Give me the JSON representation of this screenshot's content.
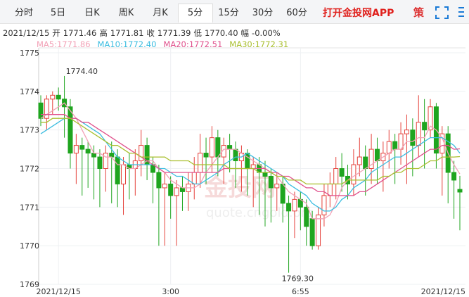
{
  "header": {
    "tabs": [
      {
        "label": "分时"
      },
      {
        "label": "5日"
      },
      {
        "label": "日K"
      },
      {
        "label": "周K"
      },
      {
        "label": "月K"
      },
      {
        "label": "5分",
        "active": true
      },
      {
        "label": "15分"
      },
      {
        "label": "30分"
      },
      {
        "label": "60分"
      }
    ],
    "app_link": "打开金投网APP",
    "strategy": "策",
    "quote": {
      "date": "2021/12/15",
      "items": [
        {
          "label": "开",
          "value": "1771.46"
        },
        {
          "label": "高",
          "value": "1771.81"
        },
        {
          "label": "收",
          "value": "1771.39"
        },
        {
          "label": "低",
          "value": "1770.40"
        },
        {
          "label": "幅",
          "value": "-0.00%"
        }
      ]
    },
    "ma_values": [
      "1771.86",
      "1772.40",
      "1772.51",
      "1772.31"
    ],
    "watermark": [
      "金投网",
      "quote.cngold.org"
    ]
  },
  "chart_data": {
    "type": "candlestick",
    "categories": [
      null,
      null,
      null,
      "2021/12/15",
      null,
      null,
      null,
      null,
      null,
      null,
      null,
      null,
      null,
      null,
      null,
      null,
      null,
      null,
      null,
      null,
      null,
      null,
      "3:00",
      null,
      null,
      null,
      null,
      null,
      null,
      null,
      null,
      null,
      null,
      null,
      null,
      null,
      null,
      null,
      null,
      null,
      null,
      null,
      null,
      null,
      "6:55",
      null,
      null,
      null,
      null,
      null,
      null,
      null,
      null,
      null,
      null,
      null,
      null,
      null,
      null,
      null,
      null,
      null,
      null,
      null,
      null,
      null,
      null,
      null,
      null,
      null,
      null,
      "2021/12/15"
    ],
    "candles": [
      [
        1773.7,
        1773.9,
        1773.1,
        1773.3
      ],
      [
        1773.3,
        1773.9,
        1773.0,
        1773.8
      ],
      [
        1773.8,
        1774.0,
        1773.4,
        1773.9
      ],
      [
        1773.9,
        1774.1,
        1773.5,
        1773.8
      ],
      [
        1773.8,
        1774.4,
        1772.8,
        1773.6
      ],
      [
        1773.6,
        1773.8,
        1772.0,
        1772.4
      ],
      [
        1772.4,
        1772.9,
        1771.6,
        1772.6
      ],
      [
        1772.6,
        1772.8,
        1771.3,
        1772.5
      ],
      [
        1772.5,
        1772.7,
        1771.5,
        1772.4
      ],
      [
        1772.4,
        1772.6,
        1771.2,
        1772.3
      ],
      [
        1772.3,
        1772.5,
        1771.0,
        1772.0
      ],
      [
        1772.0,
        1772.6,
        1771.4,
        1772.4
      ],
      [
        1772.4,
        1772.7,
        1771.1,
        1772.3
      ],
      [
        1772.3,
        1772.5,
        1771.0,
        1771.6
      ],
      [
        1771.6,
        1772.3,
        1770.8,
        1772.1
      ],
      [
        1772.1,
        1772.4,
        1771.2,
        1772.0
      ],
      [
        1772.0,
        1772.5,
        1771.3,
        1772.2
      ],
      [
        1772.2,
        1773.0,
        1771.8,
        1772.6
      ],
      [
        1772.6,
        1772.8,
        1771.7,
        1772.1
      ],
      [
        1772.1,
        1772.3,
        1771.1,
        1771.9
      ],
      [
        1771.9,
        1772.1,
        1770.0,
        1771.5
      ],
      [
        1771.5,
        1771.9,
        1770.0,
        1771.6
      ],
      [
        1771.6,
        1771.8,
        1770.7,
        1771.3
      ],
      [
        1771.3,
        1771.7,
        1770.0,
        1771.5
      ],
      [
        1771.5,
        1771.8,
        1770.9,
        1771.4
      ],
      [
        1771.4,
        1771.9,
        1770.9,
        1771.6
      ],
      [
        1771.6,
        1772.3,
        1771.2,
        1771.9
      ],
      [
        1771.9,
        1772.9,
        1771.5,
        1772.4
      ],
      [
        1772.4,
        1772.8,
        1771.6,
        1772.3
      ],
      [
        1772.3,
        1773.1,
        1771.9,
        1772.8
      ],
      [
        1772.8,
        1773.0,
        1771.8,
        1772.3
      ],
      [
        1772.3,
        1772.8,
        1771.6,
        1772.6
      ],
      [
        1772.6,
        1772.9,
        1771.9,
        1772.5
      ],
      [
        1772.5,
        1772.7,
        1771.5,
        1772.2
      ],
      [
        1772.2,
        1772.6,
        1771.4,
        1772.4
      ],
      [
        1772.4,
        1772.5,
        1771.3,
        1772.0
      ],
      [
        1772.0,
        1772.3,
        1771.0,
        1772.1
      ],
      [
        1772.1,
        1772.3,
        1770.8,
        1771.9
      ],
      [
        1771.9,
        1772.2,
        1770.5,
        1771.8
      ],
      [
        1771.8,
        1772.0,
        1770.6,
        1771.5
      ],
      [
        1771.5,
        1771.9,
        1770.9,
        1771.6
      ],
      [
        1771.6,
        1771.8,
        1770.6,
        1771.1
      ],
      [
        1771.1,
        1771.3,
        1769.3,
        1770.9
      ],
      [
        1770.9,
        1771.4,
        1770.2,
        1771.2
      ],
      [
        1771.2,
        1771.4,
        1770.4,
        1771.0
      ],
      [
        1771.0,
        1771.2,
        1770.0,
        1770.5
      ],
      [
        1770.7,
        1770.9,
        1769.9,
        1770.0
      ],
      [
        1770.0,
        1771.0,
        1769.9,
        1770.8
      ],
      [
        1770.8,
        1771.6,
        1770.5,
        1771.3
      ],
      [
        1771.3,
        1771.9,
        1771.0,
        1771.6
      ],
      [
        1771.6,
        1772.3,
        1771.2,
        1772.0
      ],
      [
        1772.0,
        1772.4,
        1771.4,
        1771.8
      ],
      [
        1771.8,
        1772.1,
        1771.2,
        1771.6
      ],
      [
        1771.6,
        1772.5,
        1771.3,
        1772.1
      ],
      [
        1772.1,
        1772.8,
        1771.8,
        1772.3
      ],
      [
        1772.3,
        1772.6,
        1771.3,
        1772.0
      ],
      [
        1772.0,
        1772.9,
        1771.6,
        1772.5
      ],
      [
        1772.5,
        1772.8,
        1771.6,
        1772.2
      ],
      [
        1772.2,
        1772.7,
        1771.4,
        1772.4
      ],
      [
        1772.4,
        1773.0,
        1772.0,
        1772.7
      ],
      [
        1772.7,
        1772.9,
        1771.6,
        1772.5
      ],
      [
        1772.5,
        1773.2,
        1772.1,
        1772.9
      ],
      [
        1772.9,
        1773.4,
        1771.6,
        1773.0
      ],
      [
        1773.0,
        1773.3,
        1771.8,
        1772.6
      ],
      [
        1772.6,
        1773.9,
        1772.3,
        1773.2
      ],
      [
        1773.2,
        1773.8,
        1772.0,
        1773.0
      ],
      [
        1773.0,
        1773.8,
        1772.8,
        1773.6
      ],
      [
        1773.6,
        1773.7,
        1772.0,
        1772.4
      ],
      [
        1772.4,
        1773.1,
        1771.3,
        1772.9
      ],
      [
        1772.9,
        1773.1,
        1771.1,
        1771.9
      ],
      [
        1771.9,
        1772.2,
        1770.7,
        1771.7
      ],
      [
        1771.46,
        1771.81,
        1770.4,
        1771.39
      ]
    ],
    "up_color": "#e5423c",
    "down_color": "#1fa51f",
    "series": [
      {
        "name": "MA5",
        "color": "#f2a1b6",
        "values": [
          1773.3,
          1773.4,
          1773.5,
          1773.6,
          1773.7,
          1773.5,
          1773.3,
          1773.0,
          1772.7,
          1772.4,
          1772.4,
          1772.3,
          1772.3,
          1772.1,
          1772.1,
          1772.0,
          1772.0,
          1772.1,
          1772.2,
          1772.2,
          1772.0,
          1771.9,
          1771.7,
          1771.6,
          1771.5,
          1771.5,
          1771.5,
          1771.6,
          1771.9,
          1772.1,
          1772.3,
          1772.5,
          1772.5,
          1772.5,
          1772.4,
          1772.3,
          1772.2,
          1772.1,
          1772.0,
          1771.9,
          1771.8,
          1771.6,
          1771.4,
          1771.3,
          1771.2,
          1771.1,
          1770.7,
          1770.7,
          1770.7,
          1770.8,
          1771.1,
          1771.5,
          1771.7,
          1771.8,
          1771.9,
          1772.0,
          1772.1,
          1772.2,
          1772.3,
          1772.4,
          1772.5,
          1772.5,
          1772.7,
          1772.7,
          1772.8,
          1772.8,
          1773.1,
          1773.0,
          1772.8,
          1772.4,
          1772.1,
          1771.86
        ]
      },
      {
        "name": "MA10",
        "color": "#3bbde0",
        "values": [
          1772.9,
          1773.0,
          1773.1,
          1773.2,
          1773.3,
          1773.3,
          1773.3,
          1773.2,
          1773.1,
          1773.0,
          1772.9,
          1772.7,
          1772.5,
          1772.3,
          1772.2,
          1772.1,
          1772.1,
          1772.1,
          1772.1,
          1772.1,
          1772.0,
          1772.0,
          1771.9,
          1771.8,
          1771.8,
          1771.7,
          1771.6,
          1771.6,
          1771.7,
          1771.8,
          1771.9,
          1772.1,
          1772.2,
          1772.3,
          1772.3,
          1772.4,
          1772.3,
          1772.2,
          1772.1,
          1772.0,
          1771.9,
          1771.8,
          1771.6,
          1771.5,
          1771.4,
          1771.3,
          1771.1,
          1771.0,
          1770.9,
          1770.9,
          1771.0,
          1771.2,
          1771.3,
          1771.5,
          1771.6,
          1771.7,
          1771.9,
          1772.0,
          1772.1,
          1772.2,
          1772.3,
          1772.3,
          1772.4,
          1772.5,
          1772.6,
          1772.7,
          1772.8,
          1772.8,
          1772.8,
          1772.7,
          1772.6,
          1772.4
        ]
      },
      {
        "name": "MA20",
        "color": "#e0508c",
        "values": [
          1773.4,
          1773.4,
          1773.4,
          1773.4,
          1773.4,
          1773.3,
          1773.3,
          1773.2,
          1773.2,
          1773.1,
          1773.0,
          1772.9,
          1772.8,
          1772.7,
          1772.6,
          1772.5,
          1772.4,
          1772.3,
          1772.2,
          1772.1,
          1772.0,
          1771.9,
          1771.9,
          1771.9,
          1771.9,
          1771.9,
          1771.9,
          1771.9,
          1771.9,
          1771.9,
          1771.9,
          1772.0,
          1772.0,
          1772.0,
          1772.0,
          1772.0,
          1772.0,
          1772.0,
          1772.0,
          1771.9,
          1771.9,
          1771.8,
          1771.8,
          1771.7,
          1771.6,
          1771.5,
          1771.5,
          1771.4,
          1771.4,
          1771.3,
          1771.3,
          1771.3,
          1771.3,
          1771.3,
          1771.4,
          1771.4,
          1771.5,
          1771.6,
          1771.7,
          1771.8,
          1771.9,
          1772.0,
          1772.1,
          1772.2,
          1772.3,
          1772.4,
          1772.5,
          1772.5,
          1772.6,
          1772.6,
          1772.5,
          1772.51
        ]
      },
      {
        "name": "MA30",
        "color": "#a9bf2e",
        "values": [
          1773.2,
          1773.2,
          1773.3,
          1773.3,
          1773.3,
          1773.3,
          1773.2,
          1773.1,
          1773.0,
          1772.9,
          1772.8,
          1772.7,
          1772.6,
          1772.6,
          1772.5,
          1772.4,
          1772.4,
          1772.3,
          1772.3,
          1772.3,
          1772.3,
          1772.3,
          1772.2,
          1772.2,
          1772.2,
          1772.2,
          1772.1,
          1772.1,
          1772.1,
          1772.1,
          1772.1,
          1772.1,
          1772.0,
          1772.0,
          1772.0,
          1772.0,
          1772.0,
          1771.9,
          1771.9,
          1771.9,
          1771.8,
          1771.8,
          1771.7,
          1771.7,
          1771.7,
          1771.6,
          1771.6,
          1771.6,
          1771.6,
          1771.6,
          1771.6,
          1771.6,
          1771.7,
          1771.7,
          1771.7,
          1771.7,
          1771.7,
          1771.7,
          1771.8,
          1771.8,
          1771.9,
          1771.9,
          1772.0,
          1772.0,
          1772.0,
          1772.1,
          1772.2,
          1772.2,
          1772.3,
          1772.3,
          1772.3,
          1772.31
        ]
      }
    ],
    "annotations": [
      "1774.40",
      "1769.30"
    ],
    "ylim": [
      1769,
      1775
    ],
    "yticks": [
      1769,
      1770,
      1771,
      1772,
      1773,
      1774,
      1775
    ],
    "grid": true
  }
}
